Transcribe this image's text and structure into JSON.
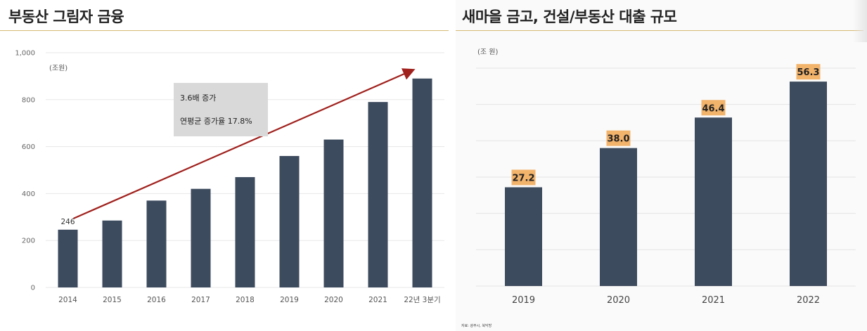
{
  "left": {
    "title": "부동산 그림자 금융",
    "unit": "(조원)",
    "annotation": {
      "line1": "3.6배 증가",
      "line2": "연평균 증가율 17.8%"
    },
    "colors": {
      "bar": "#3d4b5e",
      "arrow": "#a0201c",
      "grid": "#e7e7e7",
      "annotation_bg": "#d9d9d9"
    }
  },
  "right": {
    "title": "새마을 금고, 건설/부동산 대출 규모",
    "unit": "(조 원)",
    "source": "자료: 광주시, 북닥방",
    "colors": {
      "bar": "#3d4b5e",
      "label_bg": "#f2b36b",
      "grid": "#e4e4e4"
    }
  },
  "chart_data": [
    {
      "type": "bar",
      "title": "부동산 그림자 금융",
      "categories": [
        "2014",
        "2015",
        "2016",
        "2017",
        "2018",
        "2019",
        "2020",
        "2021",
        "22년 3분기"
      ],
      "values": [
        246,
        285,
        370,
        420,
        470,
        560,
        630,
        790,
        890
      ],
      "data_labels": [
        "246",
        null,
        null,
        null,
        null,
        null,
        null,
        null,
        null
      ],
      "yticks": [
        "0",
        "200",
        "400",
        "600",
        "800",
        "1,000"
      ],
      "ylim": [
        0,
        1000
      ],
      "ylabel": "(조원)",
      "xlabel": "",
      "grid": true,
      "legend": "none"
    },
    {
      "type": "bar",
      "title": "새마을 금고, 건설/부동산 대출 규모",
      "categories": [
        "2019",
        "2020",
        "2021",
        "2022"
      ],
      "values": [
        27.2,
        38.0,
        46.4,
        56.3
      ],
      "data_labels": [
        "27.2",
        "38.0",
        "46.4",
        "56.3"
      ],
      "ylim": [
        0,
        60
      ],
      "ylabel": "(조 원)",
      "xlabel": "",
      "grid": true,
      "legend": "none"
    }
  ]
}
